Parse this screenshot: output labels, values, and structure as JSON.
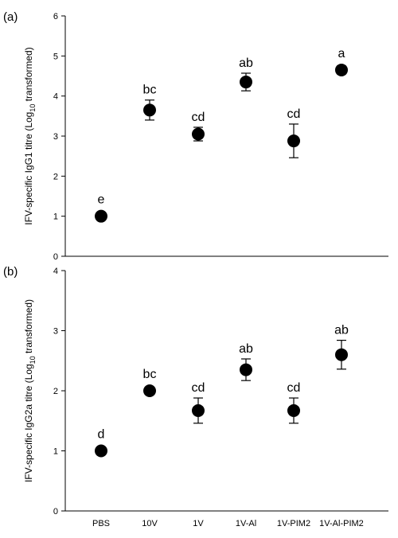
{
  "chart_data": [
    {
      "type": "scatter",
      "panel_label": "(a)",
      "ylabel_parts": {
        "pre": "IFV-specific IgG1 titre (Log",
        "sub": "10",
        "post": " transformed)"
      },
      "xlabel": "",
      "categories": [
        "PBS",
        "10V",
        "1V",
        "1V-Al",
        "1V-PIM2",
        "1V-Al-PIM2"
      ],
      "ylim": [
        0,
        6
      ],
      "yticks": [
        0,
        1,
        2,
        3,
        4,
        5,
        6
      ],
      "show_xtick_labels": false,
      "series": [
        {
          "values": [
            1.0,
            3.65,
            3.05,
            4.35,
            2.88,
            4.65
          ],
          "errors": [
            0.02,
            0.25,
            0.17,
            0.22,
            0.42,
            0.1
          ],
          "letters": [
            "e",
            "bc",
            "cd",
            "ab",
            "cd",
            "a"
          ]
        }
      ]
    },
    {
      "type": "scatter",
      "panel_label": "(b)",
      "ylabel_parts": {
        "pre": "IFV-specific IgG2a titre (Log",
        "sub": "10",
        "post": " transformed)"
      },
      "xlabel": "",
      "categories": [
        "PBS",
        "10V",
        "1V",
        "1V-Al",
        "1V-PIM2",
        "1V-Al-PIM2"
      ],
      "ylim": [
        0,
        4
      ],
      "yticks": [
        0,
        1,
        2,
        3,
        4
      ],
      "show_xtick_labels": true,
      "series": [
        {
          "values": [
            1.0,
            2.0,
            1.67,
            2.35,
            1.67,
            2.6
          ],
          "errors": [
            0.02,
            0.02,
            0.21,
            0.18,
            0.21,
            0.24
          ],
          "letters": [
            "d",
            "bc",
            "cd",
            "ab",
            "cd",
            "ab"
          ]
        }
      ]
    }
  ]
}
